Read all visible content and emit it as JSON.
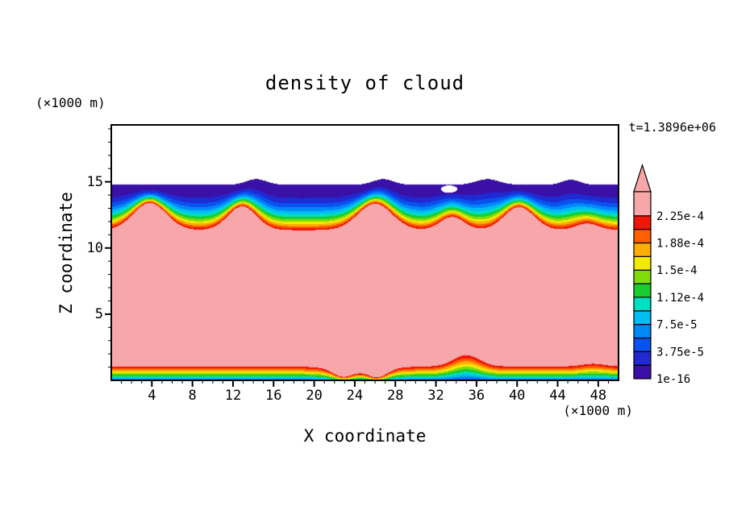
{
  "title": "density of cloud",
  "time_label": "t=1.3896e+06",
  "axes": {
    "x_label": "X coordinate",
    "y_label": "Z coordinate",
    "x_unit": "(×1000 m)",
    "y_unit": "(×1000 m)",
    "x_ticks": [
      4,
      8,
      12,
      16,
      20,
      24,
      28,
      32,
      36,
      40,
      44,
      48
    ],
    "y_ticks": [
      5,
      10,
      15
    ]
  },
  "colorbar": {
    "labels": [
      "2.25e-4",
      "1.88e-4",
      "1.5e-4",
      "1.12e-4",
      "7.5e-5",
      "3.75e-5",
      "1e-16"
    ],
    "colors": [
      "#3a10a6",
      "#1f2ad2",
      "#0a52ee",
      "#0087f8",
      "#00bdf2",
      "#00dfc0",
      "#19cd2f",
      "#7fdc0a",
      "#f2ea05",
      "#ffad05",
      "#ff5f00",
      "#f01505"
    ],
    "over_color": "#f7a6a9",
    "under_color": "#ffffff"
  },
  "chart_data": {
    "type": "heatmap",
    "title": "density of cloud",
    "xlabel": "X coordinate (×1000 m)",
    "ylabel": "Z coordinate (×1000 m)",
    "time_annotation": "t=1.3896e+06",
    "x_range": [
      0,
      50
    ],
    "z_range": [
      0,
      19.3
    ],
    "contour_levels": [
      1e-16,
      1.875e-05,
      3.75e-05,
      5.625e-05,
      7.5e-05,
      9.375e-05,
      0.0001125,
      0.00013125,
      0.00015,
      0.00016875,
      0.0001875,
      0.00020625,
      0.000225
    ],
    "labeled_levels": [
      1e-16,
      3.75e-05,
      7.5e-05,
      0.000112,
      0.00015,
      0.000188,
      0.000225
    ],
    "legend_position": "right-colorbar-with-over-arrow",
    "grid": false,
    "field_model": {
      "vmax": 0.000225,
      "cloudtop_base": 11.35,
      "plumes": [
        {
          "x": 3.8,
          "a": 2.05,
          "w": 2.3
        },
        {
          "x": 12.9,
          "a": 1.8,
          "w": 2.0
        },
        {
          "x": 26.0,
          "a": 2.0,
          "w": 2.4
        },
        {
          "x": 33.6,
          "a": 1.0,
          "w": 1.7
        },
        {
          "x": 40.2,
          "a": 1.75,
          "w": 2.1
        },
        {
          "x": 46.9,
          "a": 0.5,
          "w": 1.6
        }
      ],
      "top_power": 2.0,
      "lid_base": 14.78,
      "lid_bumps": [
        {
          "x": 14.3,
          "a": 0.42,
          "w": 1.4
        },
        {
          "x": 26.8,
          "a": 0.42,
          "w": 1.4
        },
        {
          "x": 37.1,
          "a": 0.42,
          "w": 1.6
        },
        {
          "x": 45.3,
          "a": 0.38,
          "w": 1.2
        }
      ],
      "holes": [
        {
          "x": 33.3,
          "z": 14.45,
          "rx": 0.8,
          "rz": 0.28
        }
      ],
      "base_base": 1.05,
      "base_features": [
        {
          "x": 24.5,
          "a": -0.35,
          "w": 3.5
        },
        {
          "x": 22.8,
          "a": -0.5,
          "w": 1.3
        },
        {
          "x": 26.3,
          "a": -0.55,
          "w": 1.3
        },
        {
          "x": 35.0,
          "a": 0.85,
          "w": 1.8
        },
        {
          "x": 47.5,
          "a": 0.2,
          "w": 1.5
        }
      ],
      "base_power": 0.75,
      "base_offset": 0.18
    }
  }
}
